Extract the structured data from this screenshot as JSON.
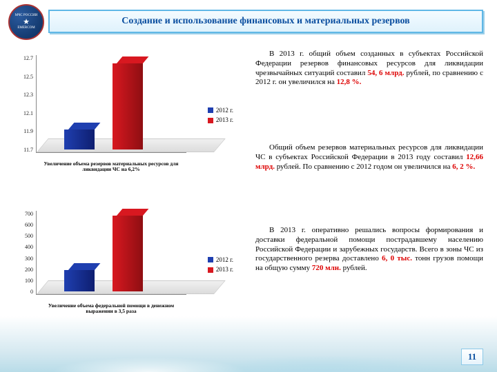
{
  "title": "Создание и использование финансовых и материальных резервов",
  "logo": {
    "top": "МЧС РОССИИ",
    "bottom": "EMERCOM"
  },
  "colors": {
    "series_2012": "#1f3fb0",
    "series_2012_dark": "#0e1e70",
    "series_2013": "#d81820",
    "series_2013_dark": "#8e0e12",
    "title_border": "#5fb7e6",
    "title_text": "#0b4fa0"
  },
  "chart1": {
    "type": "bar",
    "y_ticks": [
      "12.7",
      "12.5",
      "12.3",
      "12.1",
      "11.9",
      "11.7"
    ],
    "series": [
      {
        "label": "2012 г.",
        "value": 11.92,
        "color_key": "series_2012"
      },
      {
        "label": "2013 г.",
        "value": 12.66,
        "color_key": "series_2013"
      }
    ],
    "x_label": "Увеличение объема резервов материальных ресурсов для ликвидации ЧС на 6,2%",
    "y_min": 11.7,
    "y_max": 12.7
  },
  "chart2": {
    "type": "bar",
    "y_ticks": [
      "700",
      "600",
      "500",
      "400",
      "300",
      "200",
      "100",
      "0"
    ],
    "series": [
      {
        "label": "2012 г.",
        "value": 205,
        "color_key": "series_2012"
      },
      {
        "label": "2013 г.",
        "value": 720,
        "color_key": "series_2013"
      }
    ],
    "x_label": "Увеличение объема федеральной помощи в денежном выражении в 3,5 раза",
    "y_min": 0,
    "y_max": 720
  },
  "legend_labels": {
    "a": "2012 г.",
    "b": "2013 г."
  },
  "para1": {
    "pre": "В 2013 г. общий объем созданных в субъектах Российской Федерации резервов финансовых ресурсов для ликвидации чрезвычайных ситуаций составил ",
    "v1": "54, 6 млрд.",
    "mid": " рублей, по сравнению с 2012 г. он увеличился на ",
    "v2": "12,8 %.",
    "post": ""
  },
  "para2": {
    "pre": "Общий объем резервов материальных ресурсов для ликвидации ЧС в субъектах Российской Федерации в 2013 году составил ",
    "v1": "12,66 млрд.",
    "mid": " рублей. По сравнению с 2012 годом он увеличился на ",
    "v2": "6, 2 %.",
    "post": ""
  },
  "para3": {
    "pre": "В 2013 г. оперативно решались вопросы формирования и доставки федеральной помощи пострадавшему населению Российской Федерации и зарубежных государств. Всего в зоны ЧС из государственного резерва доставлено ",
    "v1": "6, 0 тыс.",
    "mid": " тонн грузов помощи на общую сумму ",
    "v2": "720 млн.",
    "post": " рублей."
  },
  "page": "11"
}
